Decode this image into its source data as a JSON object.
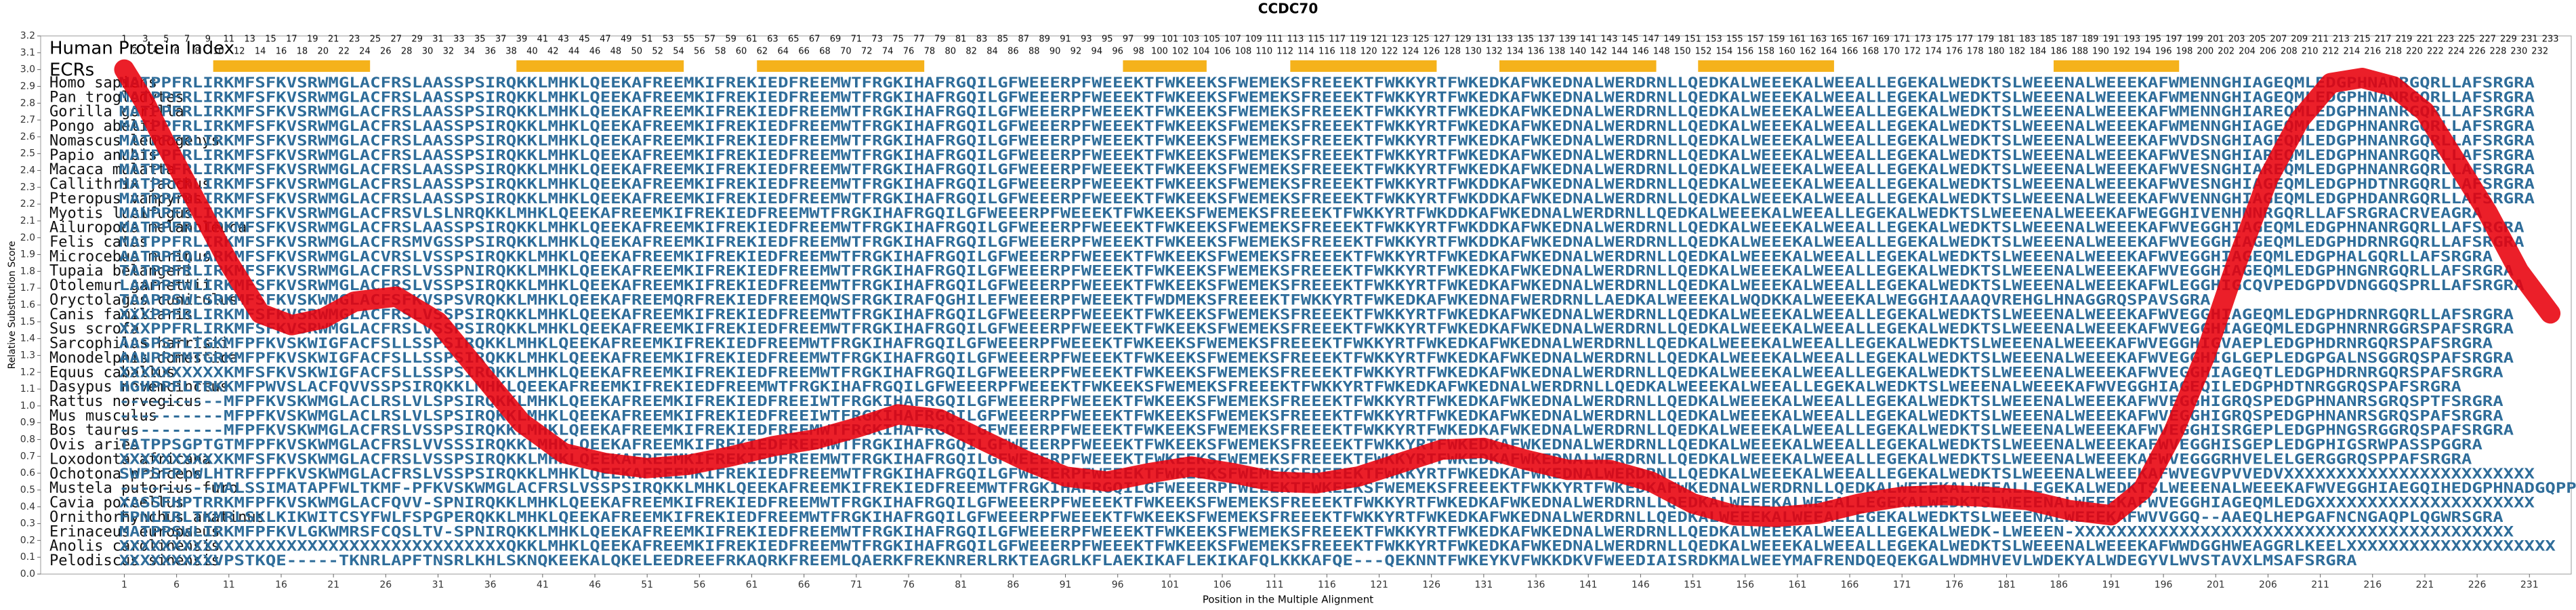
{
  "chart_data": {
    "type": "line",
    "title": "CCDC70",
    "xlabel": "Position in the Multiple Alignment",
    "ylabel": "Relative Substitution Score",
    "index_title": "Human Protein Index",
    "ecr_title": "ECRs",
    "ecr_color": "#f5b21b",
    "ecrs": [
      [
        10,
        24
      ],
      [
        39,
        54
      ],
      [
        62,
        77
      ],
      [
        97,
        104
      ],
      [
        113,
        126
      ],
      [
        133,
        147
      ],
      [
        152,
        164
      ],
      [
        186,
        197
      ]
    ],
    "human_index": [
      1,
      2,
      3,
      4,
      5,
      6,
      7,
      8,
      9,
      10,
      11,
      12,
      13,
      14,
      15,
      16,
      17,
      18,
      19,
      20,
      21,
      22,
      23,
      24,
      25,
      26,
      27,
      28,
      29,
      30,
      31,
      32,
      33,
      34,
      35,
      36,
      37,
      38,
      39,
      40,
      41,
      42,
      43,
      44,
      45,
      46,
      47,
      48,
      49,
      50,
      51,
      52,
      53,
      54,
      55,
      56,
      57,
      58,
      59,
      60,
      61,
      62,
      63,
      64,
      65,
      66,
      67,
      68,
      69,
      70,
      71,
      72,
      73,
      74,
      75,
      76,
      77,
      78,
      79,
      80,
      81,
      82,
      83,
      84,
      85,
      86,
      87,
      88,
      89,
      90,
      91,
      92,
      93,
      94,
      95,
      96,
      97,
      98,
      99,
      100,
      101,
      102,
      103,
      104,
      105,
      106,
      107,
      108,
      109,
      110,
      111,
      112,
      113,
      114,
      115,
      116,
      117,
      118,
      119,
      120,
      121,
      122,
      123,
      124,
      125,
      126,
      127,
      128,
      129,
      130,
      131,
      132,
      133,
      134,
      135,
      136,
      137,
      138,
      139,
      140,
      141,
      142,
      143,
      144,
      145,
      146,
      147,
      148,
      149,
      150,
      151,
      152,
      153,
      154,
      155,
      156,
      157,
      158,
      159,
      160,
      161,
      162,
      163,
      164,
      165,
      166,
      167,
      168,
      169,
      170,
      171,
      172,
      173,
      174,
      175,
      176,
      177,
      178,
      179,
      180,
      181,
      182,
      183,
      184,
      185,
      186,
      187,
      188,
      189,
      190,
      191,
      192,
      193,
      194,
      195,
      196,
      197,
      198,
      199,
      200,
      201,
      202,
      203,
      204,
      205,
      206,
      207,
      208,
      209,
      210,
      211,
      212,
      213,
      214,
      215,
      216,
      217,
      218,
      219,
      220,
      221,
      222,
      223,
      224,
      225,
      226,
      227,
      228,
      229,
      230,
      231,
      232,
      233
    ],
    "species": [
      "Homo sapiens",
      "Pan troglodytes",
      "Gorilla gorilla",
      "Pongo abelii",
      "Nomascus leucogenys",
      "Papio anubis",
      "Macaca mulatta",
      "Callithrix jacchus",
      "Pteropus vampyrus",
      "Myotis lucifugus",
      "Ailuropoda melanoleuca",
      "Felis catus",
      "Microcebus murinus",
      "Tupaia belangeri",
      "Otolemur garnettii",
      "Oryctolagus cuniculus",
      "Canis familiaris",
      "Sus scrofa",
      "Sarcophilus harrisii",
      "Monodelphis domestica",
      "Equus caballus",
      "Dasypus novemcinctus",
      "Rattus norvegicus",
      "Mus musculus",
      "Bos taurus",
      "Ovis aries",
      "Loxodonta africana",
      "Ochotona princeps",
      "Mustela putorius furo",
      "Cavia porcellus",
      "Ornithorhynchus anatinus",
      "Erinaceus europaeus",
      "Anolis carolinensis",
      "Pelodiscus sinensis"
    ],
    "sequences": [
      "MATPPFRLIRKMFSFKVSRWMGLACFRSLAASSPSIRQKKLMHKLQEEKAFREEMKIFREKIEDFREEMWTFRGKIHAFRGQILGFWEEERPFWEEEKTFWKEEKSFWEMEKSFREEEKTFWKKYRTFWKEDKAFWKEDNALWERDRNLLQEDKALWEEEKALWEEALLEGEKALWEDKTSLWEEENALWEEEKAFWMENNGHIAGEQMLEDGPHNANRGQRLLAFSRGRA",
      "MATPPFRLIRKMFSFKVSRWMGLACFRSLAASSPSIRQKKLMHKLQEEKAFREEMKIFREKIEDFREEMWTFRGKIHAFRGQILGFWEEERPFWEEEKTFWKEEKSFWEMEKSFREEEKTFWKKYRTFWKEDKAFWKEDNALWERDRNLLQEDKALWEEEKALWEEALLEGEKALWEDKTSLWEEENALWEEEKAFWMENNGHIAGEQMLEDGPHNANRGQRLLAFSRGRA",
      "MATPPFRLIRKMFSFKVSRWMGLACFRSLAASSPSIRQKKLMHKLQEEKAFREEMKIFREKIEDFREEMWTFRGKIHAFRGQILGFWEEERPFWEEEKTFWKEEKSFWEMEKSFREEEKTFWKKYRTFWKEDKAFWKEDNALWERDRNLLQEDKALWEEEKALWEEALLEGEKALWEDKTSLWEEENALWEEEKAFWMENNGHIAREQMLEDGPHNANRGQRLLAFSRGRA",
      "MATPPFRLIRKMFSFKVSRWMGLACFRSLAASSPSIRQKKLMHKLQEEKAFREEMKIFREKIEDFREEMWTFRGKIHAFRGQILGFWEEERPFWEEEKTFWKEEKSFWEMEKSFREEEKTFWKKYRTFWKEDKAFWKEDNALWERDRNLLQEDKALWEEEKALWEEALLEGEKALWEDKTSLWEEENALWEEEKAFWMENNGHIAGEQMLEDGPHNANRGQRLLAFSRGRA",
      "MATPPFRLIRKMFSFKVSRWMGLACFRSLAASSPSIRQKKLMHKLQEEKAFREEMKIFREKIEDFREEMWTFRGKIHAFRGQILGFWEEERPFWEEEKTFWKEEKSFWEMEKSFREEEKTFWKKYRTFWKEDKAFWKEDNALWERDRNLLQEDKALWEEEKALWEEALLEGEKALWEDKTSLWEEENALWEEEKAFWVDSNGHIAGEQMLEDGPHNANRGQRLLAFSRGRA",
      "MATPPFRLIRKMFSFKVSRWMGLACFRSLAASSPSIRQKKLMHKLQEEKAFREEMKIFREKIEDFREEMWTFRGKIHAFRGQILGFWEEERPFWEEEKTFWKEEKSFWEMEKSFREEEKTFWKKYRTFWKEDKAFWKEDNALWERDRNLLQEDKALWEEEKALWEEALLEGEKALWEDKTSLWEEENALWEEEKAFWVESNGHIAREQMLEDGPHNANRGQRLLAFSRGRA",
      "MATPPFRLIRKMFSFKVSRWMGLACFRSLAASSPSIRQKKLMHKLQEEKAFREEMKIFREKIEDFREEMWTFRGKIHAFRGQILGFWEEERPFWEEEKTFWKEEKSFWEMEKSFREEEKTFWKKYRTFWKEDKAFWKEDNALWERDRNLLQEDKALWEEEKALWEEALLEGEKALWEDKTSLWEEENALWEEEKAFWVESNGHIAREQMLEDGPHNANRGQRLLAFSRGRA",
      "MATPPFRLIRKMFSFKVSRWMGLACFRSLAASSPSIRQKKLMHKLQEEKAFREEMKIFREKIEDFREEMWTFRGKIHAFRGQILGFWEEERPFWEEEKTFWKEEKSFWEMEKSFREEEKTFWKKYRTFWKDDKAFWKEDNALWERDRNLLQEDKALWEEEKALWEEALLEGEKALWEDKTSLWEEENALWEEEKAFWVESNGHIAGEQMLEDGPHDTNRGQRLLAFSRGRA",
      "MATPPFRLIRKMFSFKVSRWMGLACFRSLAASSPSIRQKKLMHKLQEEKAFREEMKIFREKIEDFREEMWTFRGKIHAFRGQILGFWEEERPFWEEEKTFWKEEKSFWEMEKSFREEEKTFWKKYRTFWKDDKAFWKEDNALWERDRNLLQEDKALWEEEKALWEEALLEGEKALWEDKTSLWEEENALWEEEKAFWVENNGHIAGEQMLEDGPHDANRGQRLLAFSRGRA",
      "MANPPFRLIRKMFSFKVSRWMGLACFRSVLSLNRQKKLMHKLQEEKAFREEMKIFREKIEDFREEMWTFRGKIHAFRGQILGFWEEERPFWEEEKTFWKEEKSFWEMEKSFREEEKTFWKKYRTFWKDDKAFWKEDNALWERDRNLLQEDKALWEEEKALWEEALLEGEKALWEDKTSLWEEENALWEEEKAFWEGGHIVENHNNRGQRLLAFSRGRACRVEAGRA",
      "MATPPFRLIRKMFSFKVSRWMGLACFRSLAASSPSIRQKKLMHKLQEEKAFREEMKIFREKIEDFREEMWTFRGKIHAFRGQILGFWEEERPFWEEEKTFWKEEKSFWEMEKSFREEEKTFWKKYRTFWKDDKAFWKEDNALWERDRNLLQEDKALWEEEKALWEEALLEGEKALWEDKTSLWEEENALWEEEKAFWVEGGHIAGEQMLEDGPHNANRGQRLLAFSRGRA",
      "MATPPFRLIRKMFSFKVSRWMGLACFRSMVGSSPSIRQKKLMHKLQEEKAFREEMKIFREKIEDFREEMWTFRGKIHAFRGQILGFWEEERPFWEEEKTFWKEEKSFWEMEKSFREEEKTFWKKYRTFWKDDKAFWKEDNALWERDRNLLQEDKALWEEEKALWEEALLEGEKALWEDKTSLWEEENALWEEEKAFWVEGGHIAGEQMLEDGPHDRNRGQRLLAFSRGRA",
      "AATPPFQLARKMFSFKVSRWMGLACVRSLVSSPSIRQKKLMHKLQEEKAFREEMKIFREKIEDFREEMWTFRGKIHAFRGQILGFWEEERPFWEEEKTFWKEEKSFWEMEKSFREEEKTFWKKYRTFWKEDKAFWKEDNALWERDRNLLQEDKALWEEEKALWEEALLEGEKALWEDKTSLWEEENALWEEEKAFWVEGGHIAGEQMLEDGPHALGQRLLAFSRGRA",
      "TATPPFRLIRKMFSFKVSRWMGLACFRSLVSSPNIRQKKLMHKLQEEKAFREEMKIFREKIEDFREEMWTFRGKIHAFRGQILGFWEEERPFWEEEKTFWKEEKSFWEMEKSFREEEKTFWKKYRTFWKEDKAFWKEDNALWERDRNLLQEDKALWEEEKALWEEALLEGEKALWEDKTSLWEEENALWEEEKAFWVEGGHIAGEQMLEDGPHNGNRGQRLLAFSRGRA",
      "LAAPPFWLIRKMFSFKVSRWMGLACFRSLVSSPSIRQKKLMHKLQEEKAFREEMKIFREKIEDFREEMWTFRGKIHAFRGQILGFWEEERPFWEEEKTFWKEEKSFWEMEKSFREEEKTFWKKYRTFWKEDKAFWKEDNALWERDRNLLQEDKALWEEEKALWEEALLEGEKALWEDKTSLWEEENALWEEEKAFWLEGGHIGCQVPEDGPDVDNGGQSPRLLAFSRGRA",
      "TAAPPSWLSRKMFSFKVSKWMGLACFSFKVSPSVRQKKLMHKLQEEKAFREEMQRFREKIEDFREEMQWSFRGKIRAFQGHILEFWEEERPFWEEEKTFWDMEKSFREEEKTFWKKYRTFWKEDKAFWKEDNAFWERDRNLLAEDKALWEEEKALWQDKKALWEEEKALWEGGHIAAAQVREHGLHNAGGRQSPAVSGRA",
      "XXXPPFRLIRKMFSFKVSRWMGLACFRSLVSSPSIRQKKLMHKLQEEKAFREEMKIFREKIEDFREEMWTFRGKIHAFRGQILGFWEEERPFWEEEKTFWKEEKSFWEMEKSFREEEKTFWKKYRTFWKEDKAFWKEDNALWERDRNLLQEDKALWEEEKALWEEALLEGEKALWEDKTSLWEEENALWEEEKAFWVEGGHIAGEQMLEDGPHDRNRGQRLLAFSRGRA",
      "XXXPPFRLIRKMFSFKVSRWMGLACFRSLVSSPSIRQKKLMHKLQEEKAFREEMKIFREKIEDFREEMWTFRGKIHAFRGQILGFWEEERPFWEEEKTFWKEEKSFWEMEKSFREEEKTFWKKYRTFWKEDKAFWKEDNALWERDRNLLQEDKALWEEEKALWEEALLEGEKALWEDKTSLWEEENALWEEEKAFWVEGGHIAGEQMLEDGPHNRNRGGRSPAFSRGRA",
      "AASPSFLTGKMFPFKVSKWIGFACFSLLSSPSIRQKKLMHKLQEEKAFREEMKIFREKIEDFREEMWTFRGKIHAFRGQILGFWEEERPFWEEEKTFWKEEKSFWEMEKSFREEEKTFWKKYRTFWKEDKAFWKEDNALWERDRNLLQEDKALWEEEKALWEEALLEGEKALWEDKTSLWEEENALWEEEKAFWVEGGHIGVAEPLEDGPHDRNRGQRSPAFSRGRA",
      "AANPPFMTGRKMFPFKVSKWIGFACFSLLSSPSIRQKKLMHKLQEEKAFREEMKIFREKIEDFREEMWTFRGKIHAFRGQILGFWEEERPFWEEEKTFWKEEKSFWEMEKSFREEEKTFWKKYRTFWKEDKAFWKEDNALWERDRNLLQEDKALWEEEKALWEEALLEGEKALWEDKTSLWEEENALWEEEKAFWVEGGHIGLGEPLEDGPGALNSGGRQSPAFSRGRA",
      "XXXXXXXXXXKMFSFKVSKWIGFACFSLLSSPSIRQKKLMHKLQEEKAFREEMKIFREKIEDFREEMWTFRGKIHAFRGQILGFWEEERPFWEEEKTFWKEEKSFWEMEKSFREEEKTFWKKYRTFWKEDKAFWKEDNALWERDRNLLQEDKALWEEEKALWEEALLEGEKALWEDKTSLWEEENALWEEEKAFWVEGGHIAGEQTLEDGPHDRNRGQRSPAFSRGRA",
      "HGHPPFLTRKKMFPWVSLACFQVVSSPSIRQKKLMHKLQEEKAFREEMKIFREKIEDFREEMWTFRGKIHAFRGQILGFWEEERPFWEEEKTFWKEEKSFWEMEKSFREEEKTFWKKYRTFWKEDKAFWKEDNALWERDRNLLQEDKALWEEEKALWEEALLEGEKALWEDKTSLWEEENALWEEEKAFWVEGGHIAGEQILEDGPHDTNRGGRQSPAFSRGRA",
      "----------MFPFKVSKWMGLACLRSLVLSPSIRQKKLMHKLQEEKAFREEMKIFREKIEDFREEIWTFRGKIHAFRGQILGFWEEERPFWEEEKTFWKEEKSFWEMEKSFREEEKTFWKKYRTFWKEDKAFWKEDNALWERDRNLLQEDKALWEEEKALWEEALLEGEKALWEDKTSLWEEENALWEEEKAFWVEGGHIGRQSPEDGPHNANRSGRQSPTFSRGRA",
      "----------MFPFKVSKWMGLACLRSLVLSPSIRQKKLMHKLQEEKAFREEMKIFREKIEDFREEIWTFRGKIHAFRGQILGFWEEERPFWEEEKTFWKEEKSFWEMEKSFREEEKTFWKKYRTFWKEDKAFWKEDNALWERDRNLLQEDKALWEEEKALWEEALLEGEKALWEDKTSLWEEENALWEEEKAFWVEGGHIGRQSPEDGPHNANRSGRQSPAFSRGRA",
      "----------MFPFKVSKWMGLACFRSLVSSPSIRQKKLMHKLQEEKAFREEMKIFREKIEDFREEMWTFRGKIHAFRGQILGFWEEERPFWEEEKTFWKEEKSFWEMEKSFREEEKTFWKKYRTFWKEDKAFWKEDNALWERDRNLLQEDKALWEEEKALWEEALLEGEKALWEDKTSLWEEENALWEEEKAFWVEGGHISRGEPLEDGPHNGSRGGRQSPAFSRGRA",
      "TATPPSGPTGTMFPFKVSKWMGLACFRSLVVSSSIRQKKLMHKLQEEKAFREEMKIFREKIEDFREEMWTFRGKIHAFRGQILGFWEEERPFWEEEKTFWKEEKSFWEMEKSFREEEKTFWKKYRTFWKEDKAFWKEDNALWERDRNLLQEDKALWEEEKALWEEALLEGEKALWEDKTSLWEEENALWEEEKAFWVEGGHISGEPLEDGPHIGSRWPASSPGGRA",
      "XXXXXXXXXXKMFSFKVSKWMGLACFRSLVSSPSIRQKKLMHKLQEEKAFREEMKIFREKIEDFREEMWTFRGKIHAFRGQILGFWEEERPFWEEEKTFWKEEKSFWEMEKSFREEEKTFWKKYRTFWKEDKAFWKEDNALWERDRNLLQEDKALWEEEKALWEEALLEGEKALWEDKTSLWEEENALWEEEKAFWVEGGGRHVELELGERGGRQSPPAFSRGRA",
      "SWPSFPLWLHTRFFPFKVSKWMGLACFRSLVSSPSIRQKKLMHKLQEEKAFREEMKIFREKIEDFREEMWTFRGKIHAFRGQILGFWEEERPFWEEEKTFWKEEKSFWEMEKSFREEEKTFWKKYRTFWKEDKAFWKEDNALWERDRNLLQEDKALWEEEKALWEEALLEGEKALWEDKTSLWEEENALWEEEKAFWVEGVPVVEDVXXXXXXXXXXXXXXXXXXXXXXXX",
      "---------MALSSIMATAPFWLTKMF-PFKVSKWMGLACFRSLVSSPSIRQKKLMHKLQEEKAFREEMKIFREKIEDFREEMWTFRGKIHAFRGQILGFWEEERPFWEEEKTFWKEEKSFWEMEKSFREEEKTFWKKYRTFWKEDKAFWKEDNALWERDRNLLQEDKALWEEEKALWEEALLEGEKALWEDKTSLWEEENALWEEEKAFWVEGGHIAEGQIHEDGPHNADGQPPAFSRGRA",
      "XASSFHPTRRKMFPFKVSKWMGLACFQVV-SPNIRQKKLMHKLQEEKAFREEMKIFREKIEDFREEMWTFRGKIHAFRGQILGFWEEERPFWEEEKTFWKEEKSFWEMEKSFREEEKTFWKKYRTFWKEDKAFWKEDNALWERDRNLLQEDKALWEEEKALWEEALLEGEKALWEDKTSLWEEENALWEEEKAFWVEGGHIAGEQMLEDGXXXXXXXXXXXXXXXXXXXXX",
      "FPNLIRLTKMRLSKLKIKWITCSYFWLFSPGPERQKKLMHKLQEEKAFREEMKIFREKIEDFREEMWTFRGKIHAFRGQILGFWEEERPFWEEEKTFWKEEKSFWEMEKSFREEEKTFWKKYRTFWKEDKAFWKEDNALWERDRNLLQEDKALWEEEKALWEEALLEGEKALWEDKTSLWEEENALWEEEKAFWVVGGQ--AAEQLHEPGAFNCNGAQPLQGWRSGRA",
      "MATPPSWLIRKMFPFKVLGKWMRSFCQSLTV-SPNIRQKKLMHKLQEEKAFREEMKIFREKIEDFREEMWTFRGKIHAFRGQILGFWEEERPFWEEEKTFWKEEKSFWEMEKSFREEEKTFWKKYRTFWKEDKAFWKEDNALWERDRNLLQEDKALWEEEKALWEEALLEGEKALWEDK-LWEEEN-XXXXXXXXXXXXXXXXXXXXXXXXXXXXXXXXXXXXXXXXXX",
      "XXXXXXXXXXXXXXXXXXXXXXXXXXXXXXXXXXXXXQKKLMHKLQEEKAFREEMKIFREKIEDFREEMWTFRGKIHAFRGQILGFWEEERPFWEEEKTFWKEEKSFWEMEKSFREEEKTFWKKYRTFWKEDKAFWKEDNALWERDRNLLQEDKALWEEEKALWEEALLEGEKALWEDKTSLWEEENALWEEEKAFWWDGGHWEAGGRLKEELXXXXXXXXXXXXXXXXXXXX",
      "XXXXXXXXXVPSTKQE-----TKNRLAPFTNSRLKHLSKNQKEEKALQKELEEDREEFRKAQRKFREEMLQAERKFREKNRERLRKTEAGRLKFLAEKIKAFLEKIKAFQLKKKAFQE---QEKNNTFWKEYKVFWKKDKVFWEEDIAISRDKMALWEEYMAFRENDQEQEKGALWDMHVEVLWDEKYALWDEGYVLWVSTAVXLMSAFSRGRA"
    ],
    "series": [
      {
        "name": "Relative Substitution Score",
        "color": "#e8000b",
        "x": [
          1,
          3,
          5,
          8,
          11,
          14,
          17,
          20,
          23,
          27,
          31,
          35,
          39,
          43,
          47,
          51,
          55,
          59,
          63,
          67,
          71,
          75,
          79,
          83,
          87,
          91,
          95,
          99,
          103,
          107,
          111,
          115,
          119,
          123,
          127,
          131,
          135,
          139,
          143,
          147,
          151,
          155,
          159,
          163,
          167,
          171,
          175,
          179,
          183,
          187,
          191,
          194,
          197,
          200,
          203,
          206,
          209,
          212,
          215,
          218,
          221,
          224,
          227,
          230,
          233
        ],
        "values": [
          3.0,
          2.8,
          2.55,
          2.2,
          1.85,
          1.55,
          1.48,
          1.52,
          1.62,
          1.65,
          1.5,
          1.2,
          0.9,
          0.72,
          0.66,
          0.63,
          0.65,
          0.7,
          0.76,
          0.8,
          0.87,
          0.95,
          0.92,
          0.8,
          0.68,
          0.58,
          0.55,
          0.6,
          0.64,
          0.6,
          0.55,
          0.54,
          0.58,
          0.66,
          0.74,
          0.75,
          0.68,
          0.62,
          0.62,
          0.55,
          0.42,
          0.35,
          0.34,
          0.36,
          0.42,
          0.46,
          0.47,
          0.46,
          0.44,
          0.38,
          0.35,
          0.5,
          0.85,
          1.3,
          1.85,
          2.35,
          2.7,
          2.92,
          2.95,
          2.9,
          2.75,
          2.45,
          2.15,
          1.8,
          1.55
        ]
      }
    ],
    "xlim": [
      -7,
      235
    ],
    "ylim": [
      0,
      3.2
    ],
    "xticks": [
      1,
      6,
      11,
      16,
      21,
      26,
      31,
      36,
      41,
      46,
      51,
      56,
      61,
      66,
      71,
      76,
      81,
      86,
      91,
      96,
      101,
      106,
      111,
      116,
      121,
      126,
      131,
      136,
      141,
      146,
      151,
      156,
      161,
      166,
      171,
      176,
      181,
      186,
      191,
      196,
      201,
      206,
      211,
      216,
      221,
      226,
      231
    ],
    "yticks": [
      {
        "value": 0,
        "label": "0.0"
      },
      0.1,
      0.2,
      0.3,
      0.4,
      0.5,
      0.6,
      0.7,
      0.8,
      0.9,
      {
        "value": 1,
        "label": "1.0"
      },
      1.1,
      1.2,
      1.3,
      1.4,
      1.5,
      1.6,
      1.7,
      1.8,
      1.9,
      {
        "value": 2,
        "label": "2.0"
      },
      2.1,
      2.2,
      2.3,
      2.4,
      2.5,
      2.6,
      2.7,
      2.8,
      2.9,
      {
        "value": 3,
        "label": "3.0"
      },
      3.1,
      3.2
    ]
  }
}
